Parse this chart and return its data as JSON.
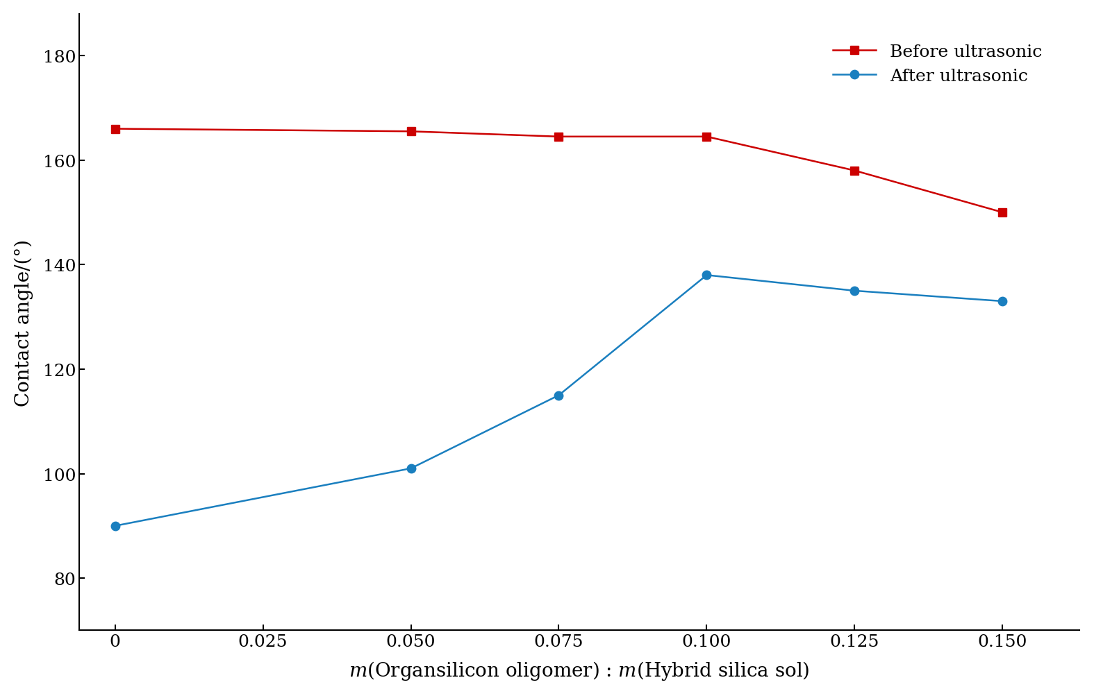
{
  "before_x": [
    0,
    0.05,
    0.075,
    0.1,
    0.125,
    0.15
  ],
  "before_y": [
    166,
    165.5,
    164.5,
    164.5,
    158,
    150
  ],
  "after_x": [
    0,
    0.05,
    0.075,
    0.1,
    0.125,
    0.15
  ],
  "after_y": [
    90,
    101,
    115,
    138,
    135,
    133
  ],
  "before_color": "#cc0000",
  "after_color": "#1a7fbf",
  "xlabel": "$m$(Organsilicon oligomer) : $m$(Hybrid silica sol)",
  "ylabel": "Contact angle/(°)",
  "xlim": [
    -0.006,
    0.163
  ],
  "ylim": [
    70,
    188
  ],
  "yticks": [
    80,
    100,
    120,
    140,
    160,
    180
  ],
  "xticks": [
    0,
    0.025,
    0.05,
    0.075,
    0.1,
    0.125,
    0.15
  ],
  "xtick_labels": [
    "0",
    "0.025",
    "0.050",
    "0.075",
    "0.100",
    "0.125",
    "0.150"
  ],
  "ytick_labels": [
    "80",
    "100",
    "120",
    "140",
    "160",
    "180"
  ],
  "legend_before": "Before ultrasonic",
  "legend_after": "After ultrasonic",
  "axis_fontsize": 20,
  "tick_fontsize": 18,
  "legend_fontsize": 18,
  "marker_size": 9,
  "line_width": 1.8
}
